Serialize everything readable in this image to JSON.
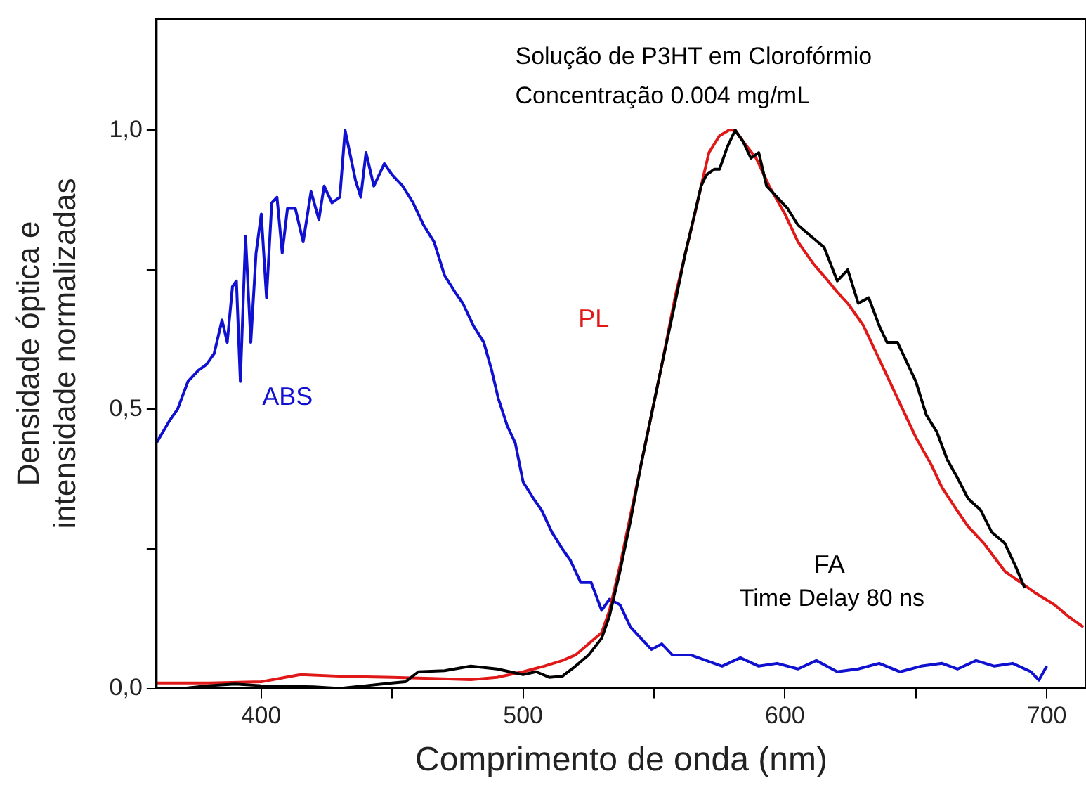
{
  "chart_data": {
    "type": "line",
    "xlabel": "Comprimento de onda (nm)",
    "ylabel": "Densidade óptica e\nintensidade normalizadas",
    "annotations": [
      "Solução de P3HT em Clorofórmio",
      "Concentração 0.004 mg/mL",
      "Time Delay 80 ns"
    ],
    "xlim": [
      360,
      715
    ],
    "ylim": [
      0,
      1.2
    ],
    "xticks": [
      400,
      {
        "value": 450,
        "label": null
      },
      500,
      {
        "value": 550,
        "label": null
      },
      600,
      {
        "value": 650,
        "label": null
      },
      700
    ],
    "yticks": [
      {
        "value": 0,
        "label": "0,0"
      },
      {
        "value": 0.25,
        "label": null
      },
      {
        "value": 0.5,
        "label": "0,5"
      },
      {
        "value": 0.75,
        "label": null
      },
      {
        "value": 1,
        "label": "1,0"
      }
    ],
    "grid": false,
    "legend": false,
    "marker": "none",
    "line_style": "solid",
    "series": [
      {
        "name": "ABS",
        "color": "#1010d0",
        "x": [
          360,
          365,
          368,
          372,
          376,
          379,
          382,
          385,
          387,
          389,
          390.5,
          392,
          394,
          396,
          398,
          400,
          402,
          404,
          406,
          408,
          410,
          413,
          416,
          419,
          422,
          424,
          427,
          430,
          432,
          436,
          438,
          440,
          443,
          447,
          450,
          454,
          458,
          462,
          466,
          470,
          474,
          477,
          481,
          485,
          488,
          490.5,
          494,
          497,
          500,
          504,
          507,
          511,
          515,
          518,
          522,
          526,
          530,
          533,
          537,
          541,
          545,
          549,
          553,
          557,
          564,
          570,
          576,
          583,
          590,
          597,
          605,
          612,
          620,
          628,
          636,
          644,
          652,
          660,
          666,
          673,
          680,
          687,
          694,
          697,
          700
        ],
        "values": [
          0.44,
          0.48,
          0.5,
          0.55,
          0.57,
          0.58,
          0.6,
          0.66,
          0.62,
          0.72,
          0.73,
          0.55,
          0.81,
          0.62,
          0.78,
          0.85,
          0.7,
          0.87,
          0.88,
          0.78,
          0.86,
          0.86,
          0.8,
          0.89,
          0.84,
          0.9,
          0.87,
          0.88,
          1.0,
          0.91,
          0.88,
          0.96,
          0.9,
          0.94,
          0.92,
          0.9,
          0.87,
          0.83,
          0.8,
          0.74,
          0.71,
          0.69,
          0.65,
          0.62,
          0.57,
          0.52,
          0.47,
          0.44,
          0.37,
          0.34,
          0.32,
          0.28,
          0.25,
          0.23,
          0.19,
          0.19,
          0.14,
          0.16,
          0.15,
          0.11,
          0.09,
          0.07,
          0.08,
          0.06,
          0.06,
          0.05,
          0.04,
          0.055,
          0.04,
          0.045,
          0.035,
          0.05,
          0.03,
          0.035,
          0.045,
          0.03,
          0.04,
          0.045,
          0.035,
          0.05,
          0.04,
          0.045,
          0.03,
          0.015,
          0.04
        ]
      },
      {
        "name": "PL",
        "color": "#e01818",
        "x": [
          360,
          380,
          400,
          415,
          430,
          450,
          465,
          480,
          490,
          500,
          508,
          515,
          520,
          525,
          530,
          533,
          537,
          541,
          545,
          549,
          553,
          558,
          562,
          565.6,
          568,
          571,
          575,
          578.6,
          581,
          584,
          589,
          594,
          600,
          605,
          611,
          616.5,
          620,
          624,
          630,
          635,
          640,
          646,
          650,
          656,
          660,
          665.6,
          670,
          676,
          684,
          690,
          696,
          703,
          708,
          714
        ],
        "values": [
          0.01,
          0.01,
          0.012,
          0.025,
          0.022,
          0.02,
          0.018,
          0.016,
          0.02,
          0.03,
          0.04,
          0.05,
          0.06,
          0.08,
          0.1,
          0.14,
          0.22,
          0.31,
          0.4,
          0.49,
          0.58,
          0.7,
          0.78,
          0.85,
          0.9,
          0.96,
          0.99,
          1.0,
          1.0,
          0.98,
          0.95,
          0.9,
          0.85,
          0.8,
          0.76,
          0.73,
          0.71,
          0.69,
          0.65,
          0.6,
          0.55,
          0.49,
          0.45,
          0.4,
          0.36,
          0.32,
          0.29,
          0.26,
          0.21,
          0.19,
          0.17,
          0.15,
          0.13,
          0.11
        ]
      },
      {
        "name": "FA",
        "color": "#000000",
        "x": [
          370,
          380,
          390,
          400,
          410,
          420,
          430,
          440,
          450,
          455,
          460,
          470,
          480,
          490,
          500,
          505,
          510,
          515,
          520,
          525,
          530,
          533,
          537,
          541,
          545,
          549,
          553,
          558,
          562,
          565,
          568,
          570,
          573,
          575,
          578,
          581,
          584,
          587,
          590,
          593,
          597,
          601,
          605,
          610,
          615,
          620,
          624,
          628,
          632,
          636,
          639,
          643,
          646,
          650,
          654,
          658,
          662,
          665.6,
          670,
          674.7,
          679,
          684,
          688,
          691.6
        ],
        "values": [
          0.0,
          0.005,
          0.008,
          0.005,
          0.004,
          0.003,
          0.0,
          0.005,
          0.01,
          0.012,
          0.03,
          0.032,
          0.04,
          0.035,
          0.025,
          0.03,
          0.02,
          0.022,
          0.04,
          0.06,
          0.09,
          0.13,
          0.21,
          0.3,
          0.4,
          0.49,
          0.58,
          0.69,
          0.78,
          0.84,
          0.9,
          0.92,
          0.93,
          0.93,
          0.97,
          1.0,
          0.98,
          0.95,
          0.96,
          0.9,
          0.88,
          0.86,
          0.83,
          0.81,
          0.79,
          0.73,
          0.75,
          0.69,
          0.7,
          0.65,
          0.62,
          0.62,
          0.59,
          0.55,
          0.49,
          0.46,
          0.41,
          0.38,
          0.34,
          0.32,
          0.28,
          0.26,
          0.22,
          0.18
        ]
      }
    ]
  }
}
